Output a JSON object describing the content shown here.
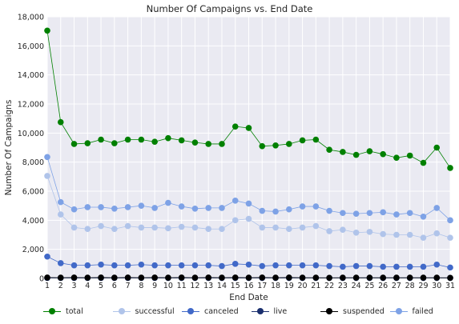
{
  "chart_data": {
    "type": "line",
    "title": "Number Of Campaigns vs. End Date",
    "xlabel": "End Date",
    "ylabel": "Number Of Campaigns",
    "x": [
      1,
      2,
      3,
      4,
      5,
      6,
      7,
      8,
      9,
      10,
      11,
      12,
      13,
      14,
      15,
      16,
      17,
      18,
      19,
      20,
      21,
      22,
      23,
      24,
      25,
      26,
      27,
      28,
      29,
      30,
      31
    ],
    "xlim": [
      1,
      31
    ],
    "ylim": [
      0,
      18000
    ],
    "yticks": [
      0,
      2000,
      4000,
      6000,
      8000,
      10000,
      12000,
      14000,
      16000,
      18000
    ],
    "ytick_labels": [
      "0",
      "2,000",
      "4,000",
      "6,000",
      "8,000",
      "10,000",
      "12,000",
      "14,000",
      "16,000",
      "18,000"
    ],
    "grid": true,
    "legend_position": "bottom",
    "background": "#eaeaf2",
    "series": [
      {
        "name": "total",
        "color": "#008000",
        "values": [
          17050,
          10750,
          9250,
          9300,
          9550,
          9300,
          9550,
          9550,
          9400,
          9650,
          9500,
          9350,
          9250,
          9250,
          10450,
          10350,
          9100,
          9150,
          9250,
          9500,
          9550,
          8850,
          8700,
          8500,
          8750,
          8550,
          8300,
          8450,
          7950,
          9000,
          7600
        ]
      },
      {
        "name": "successful",
        "color": "#b0c4ea",
        "values": [
          7050,
          4400,
          3500,
          3400,
          3600,
          3400,
          3600,
          3500,
          3500,
          3450,
          3550,
          3500,
          3400,
          3400,
          4000,
          4100,
          3500,
          3500,
          3400,
          3500,
          3600,
          3250,
          3350,
          3150,
          3200,
          3050,
          3000,
          3000,
          2800,
          3100,
          2800
        ]
      },
      {
        "name": "canceled",
        "color": "#4169c8",
        "values": [
          1500,
          1050,
          900,
          900,
          950,
          900,
          900,
          950,
          900,
          900,
          900,
          900,
          900,
          850,
          1000,
          950,
          850,
          900,
          900,
          900,
          900,
          850,
          800,
          850,
          850,
          800,
          800,
          800,
          800,
          950,
          750
        ]
      },
      {
        "name": "live",
        "color": "#1a2f6e",
        "values": [
          30,
          30,
          30,
          30,
          30,
          30,
          30,
          30,
          30,
          30,
          30,
          30,
          30,
          30,
          30,
          30,
          30,
          30,
          30,
          30,
          30,
          30,
          30,
          30,
          30,
          30,
          30,
          30,
          30,
          30,
          30
        ]
      },
      {
        "name": "suspended",
        "color": "#000000",
        "values": [
          60,
          50,
          60,
          50,
          60,
          50,
          60,
          50,
          60,
          50,
          60,
          50,
          60,
          50,
          60,
          50,
          60,
          50,
          60,
          50,
          50,
          40,
          50,
          50,
          50,
          50,
          50,
          50,
          50,
          50,
          40
        ]
      },
      {
        "name": "failed",
        "color": "#7ea2e6",
        "values": [
          8350,
          5250,
          4750,
          4900,
          4900,
          4800,
          4900,
          5000,
          4850,
          5200,
          4950,
          4800,
          4850,
          4850,
          5350,
          5150,
          4650,
          4600,
          4750,
          4950,
          4950,
          4650,
          4500,
          4450,
          4500,
          4550,
          4400,
          4500,
          4250,
          4850,
          4000
        ]
      }
    ]
  }
}
